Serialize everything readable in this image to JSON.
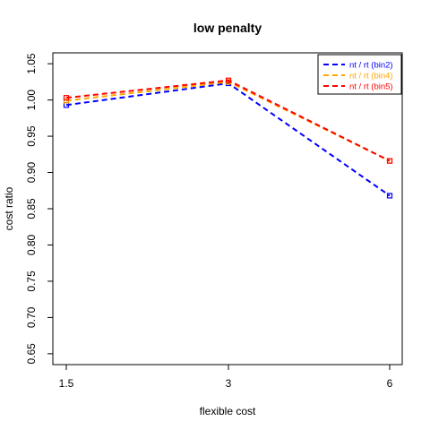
{
  "chart_data": {
    "type": "line",
    "title": "low penalty",
    "xlabel": "flexible cost",
    "ylabel": "cost ratio",
    "x": [
      1.5,
      3,
      6
    ],
    "x_tick_labels": [
      "1.5",
      "3",
      "6"
    ],
    "y_ticks": [
      "0.65",
      "0.70",
      "0.75",
      "0.80",
      "0.85",
      "0.90",
      "0.95",
      "1.00",
      "1.05"
    ],
    "ylim": [
      0.635,
      1.065
    ],
    "x_positions": "categorical",
    "grid": false,
    "legend_position": "top-right",
    "series": [
      {
        "name": "nt / rt (bin2)",
        "color": "#0000ff",
        "values": [
          0.993,
          1.023,
          0.868
        ]
      },
      {
        "name": "nt / rt (bin4)",
        "color": "#ffa500",
        "values": [
          0.999,
          1.025,
          0.916
        ]
      },
      {
        "name": "nt / rt (bin5)",
        "color": "#ff0000",
        "values": [
          1.003,
          1.027,
          0.916
        ]
      }
    ]
  }
}
